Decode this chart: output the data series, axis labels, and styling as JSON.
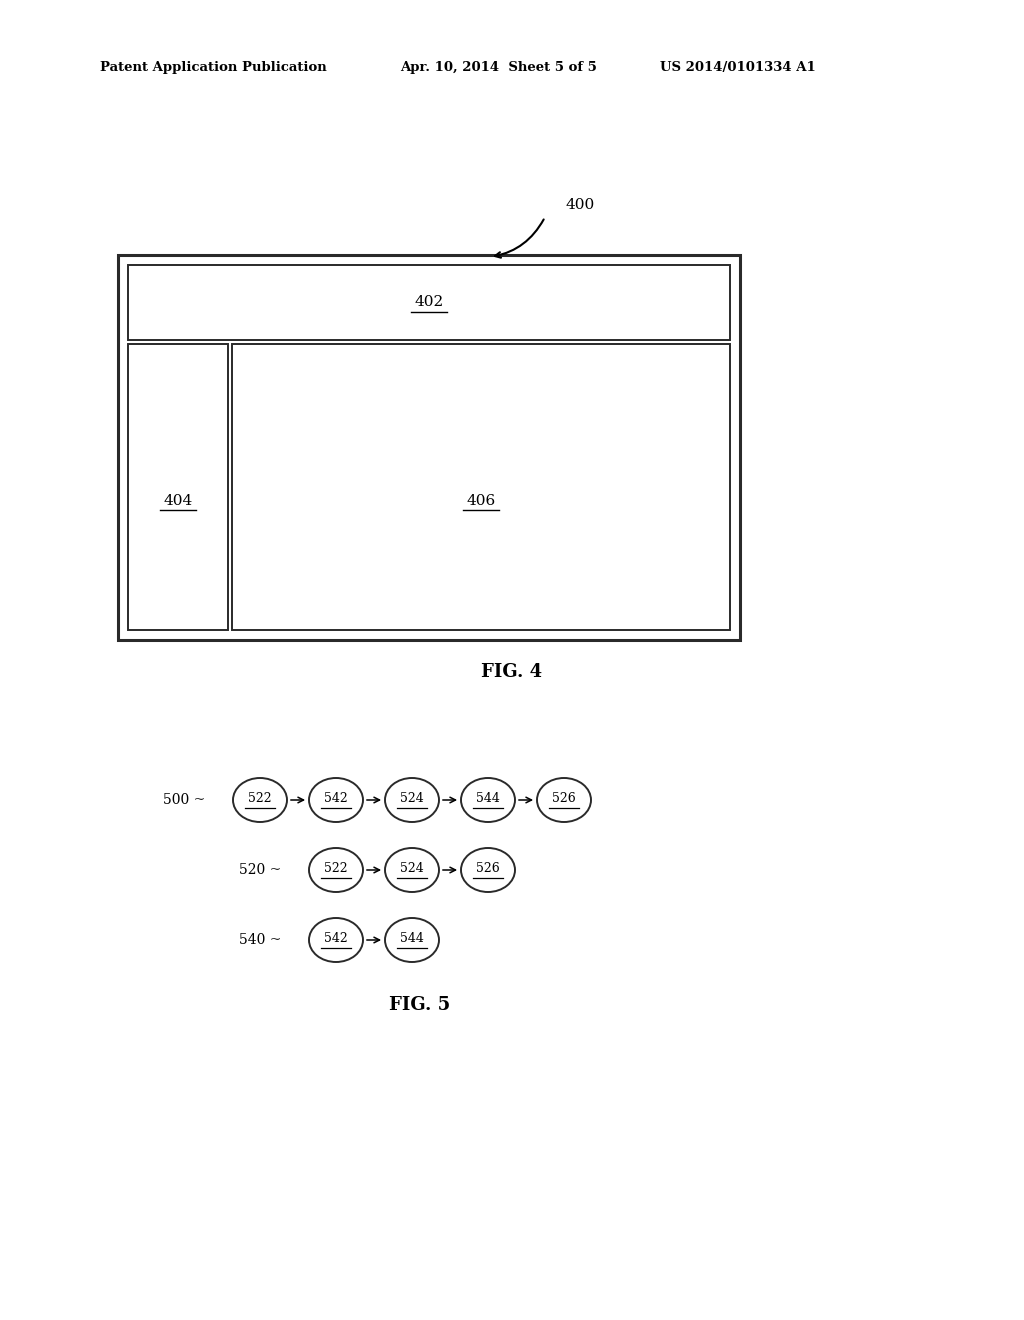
{
  "bg_color": "#ffffff",
  "header_left": "Patent Application Publication",
  "header_mid": "Apr. 10, 2014  Sheet 5 of 5",
  "header_right": "US 2014/0101334 A1",
  "fig4_label": "FIG. 4",
  "fig5_label": "FIG. 5",
  "ref400": "400",
  "ref402": "402",
  "ref404": "404",
  "ref406": "406",
  "row0_label": "500 ~",
  "row1_label": "520 ~",
  "row2_label": "540 ~",
  "row0_nodes": [
    "522",
    "542",
    "524",
    "544",
    "526"
  ],
  "row1_nodes": [
    "522",
    "524",
    "526"
  ],
  "row2_nodes": [
    "542",
    "544"
  ],
  "text_color": "#000000"
}
